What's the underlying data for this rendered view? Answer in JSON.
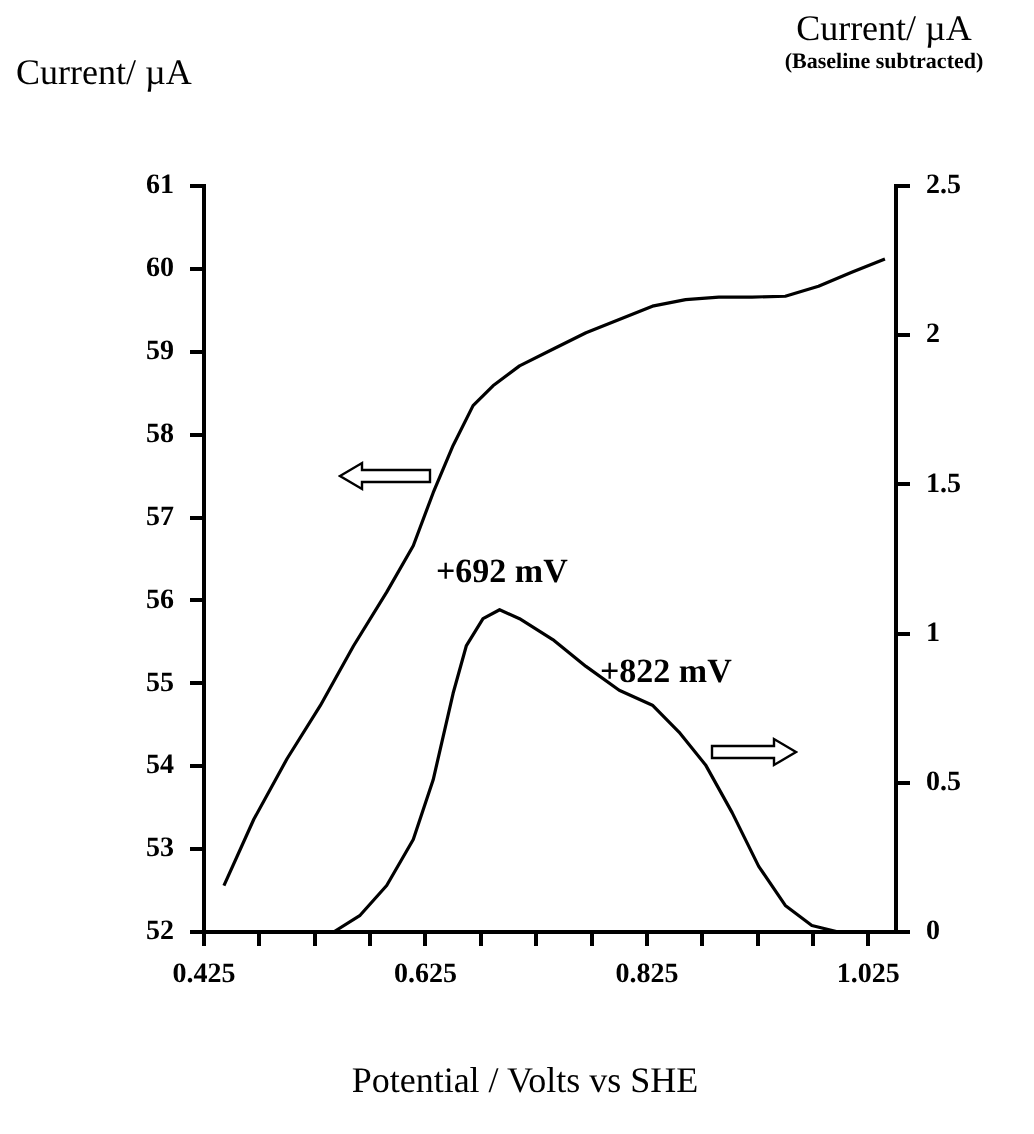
{
  "chart_data": {
    "type": "line",
    "ylabel": "Current/ µA",
    "y2label": "Current/ µA",
    "xlabel": "Potential / Volts vs SHE",
    "annotations": [
      "(Baseline subtracted)",
      "+692 mV",
      "+822 mV"
    ],
    "xlim": [
      0.425,
      1.05
    ],
    "xticks": [
      0.425,
      {
        "value": 0.475,
        "label": null
      },
      {
        "value": 0.525,
        "label": null
      },
      {
        "value": 0.575,
        "label": null
      },
      0.625,
      {
        "value": 0.675,
        "label": null
      },
      {
        "value": 0.725,
        "label": null
      },
      {
        "value": 0.775,
        "label": null
      },
      0.825,
      {
        "value": 0.875,
        "label": null
      },
      {
        "value": 0.925,
        "label": null
      },
      {
        "value": 0.975,
        "label": null
      },
      1.025
    ],
    "ylim": [
      52,
      61
    ],
    "yticks": [
      52,
      53,
      54,
      55,
      56,
      57,
      58,
      59,
      60,
      61
    ],
    "y2lim": [
      0,
      2.5
    ],
    "y2ticks": [
      0,
      0.5,
      1,
      1.5,
      2,
      2.5
    ],
    "marker": "none",
    "line_style": "solid",
    "series": [
      {
        "color": "#000000",
        "axis": "y",
        "x": [
          0.443,
          0.47,
          0.5,
          0.53,
          0.56,
          0.59,
          0.614,
          0.632,
          0.65,
          0.668,
          0.686,
          0.71,
          0.74,
          0.77,
          0.8,
          0.83,
          0.86,
          0.89,
          0.92,
          0.95,
          0.98,
          1.01,
          1.04
        ],
        "values": [
          52.56,
          53.36,
          54.09,
          54.73,
          55.45,
          56.1,
          56.66,
          57.3,
          57.87,
          58.35,
          58.59,
          58.83,
          59.03,
          59.23,
          59.39,
          59.55,
          59.63,
          59.66,
          59.66,
          59.67,
          59.79,
          59.96,
          60.12
        ]
      },
      {
        "color": "#000000",
        "axis": "y2",
        "x": [
          0.425,
          0.542,
          0.566,
          0.59,
          0.614,
          0.632,
          0.65,
          0.662,
          0.677,
          0.692,
          0.71,
          0.74,
          0.77,
          0.8,
          0.83,
          0.854,
          0.878,
          0.902,
          0.926,
          0.95,
          0.974,
          0.998,
          1.016
        ],
        "values": [
          0,
          0,
          0.056,
          0.156,
          0.31,
          0.51,
          0.8,
          0.96,
          1.05,
          1.08,
          1.05,
          0.98,
          0.89,
          0.81,
          0.76,
          0.67,
          0.56,
          0.4,
          0.22,
          0.089,
          0.022,
          0,
          0
        ]
      }
    ]
  }
}
